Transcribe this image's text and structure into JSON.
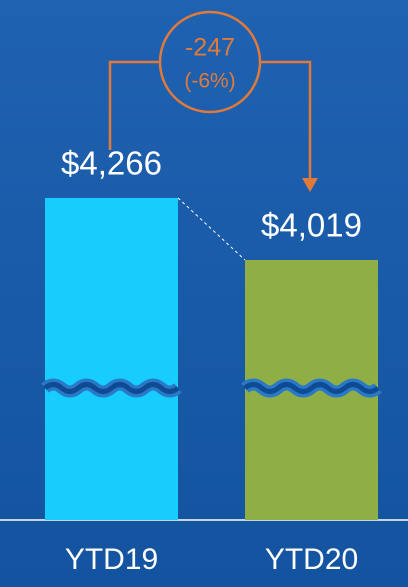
{
  "chart_data": {
    "type": "bar",
    "categories": [
      "YTD19",
      "YTD20"
    ],
    "values": [
      4266,
      4019
    ],
    "value_labels": [
      "$4,266",
      "$4,019"
    ],
    "colors": [
      "#17cdfd",
      "#8fae46"
    ],
    "annotation": {
      "difference": {
        "value": -247,
        "label": "-247"
      },
      "percent": {
        "value": -6,
        "label": "(-6%)"
      },
      "color": "#e07a3a"
    }
  }
}
